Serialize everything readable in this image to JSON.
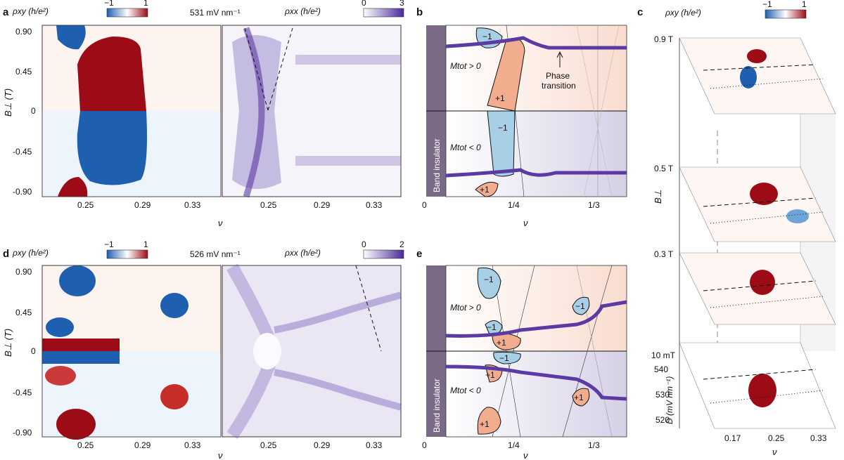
{
  "panels": {
    "a": "a",
    "b": "b",
    "c": "c",
    "d": "d",
    "e": "e"
  },
  "cb": {
    "rho_xy": "ρxy (h/e²)",
    "rho_xx": "ρxx (h/e²)",
    "min_xy": "−1",
    "max_xy": "1",
    "min_xx": "0",
    "max_xx_a": "3",
    "max_xx_d": "2"
  },
  "field_a": "531 mV nm⁻¹",
  "field_d": "526 mV nm⁻¹",
  "ylabel": "B⊥ (T)",
  "xlabel": "ν",
  "yticks": [
    "0.90",
    "0.45",
    "0",
    "-0.45",
    "-0.90"
  ],
  "xticks_ad": [
    "0.25",
    "0.29",
    "0.33"
  ],
  "xticks_be": [
    "0",
    "1/4",
    "1/3"
  ],
  "b": {
    "mpos": "Mtot > 0",
    "mneg": "Mtot < 0",
    "band": "Band insulator",
    "p1": "+1",
    "m1": "−1",
    "phase": "Phase",
    "transition": "transition"
  },
  "c": {
    "ylabel": "B⊥",
    "dlabel": "D (mV nm⁻¹)",
    "fields": [
      "0.9 T",
      "0.5 T",
      "0.3 T",
      "10 mT"
    ],
    "dticks": [
      "540",
      "530",
      "520"
    ],
    "xticks": [
      "0.17",
      "0.25",
      "0.33"
    ]
  }
}
